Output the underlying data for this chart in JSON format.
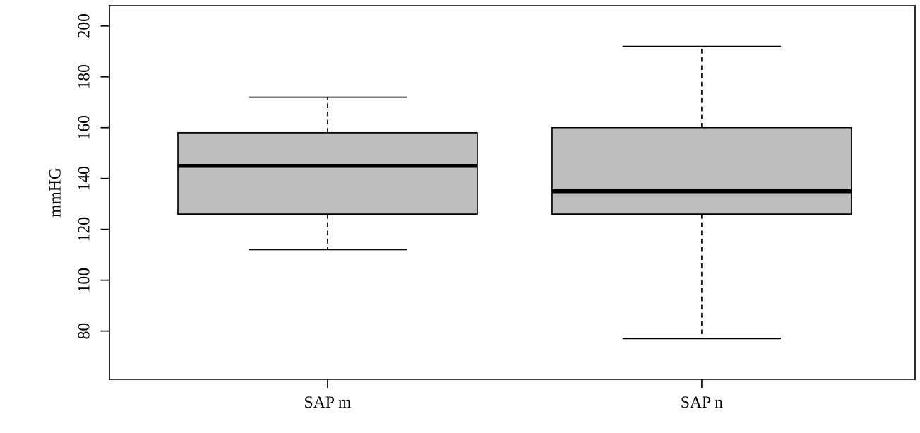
{
  "chart_data": {
    "type": "box",
    "ylabel": "mmHG",
    "categories": [
      "SAP m",
      "SAP n"
    ],
    "boxes": [
      {
        "low": 112,
        "q1": 126,
        "median": 145,
        "q3": 158,
        "high": 172
      },
      {
        "low": 77,
        "q1": 126,
        "median": 135,
        "q3": 160,
        "high": 192
      }
    ],
    "color": "#bebebe",
    "ylim": [
      61,
      208
    ],
    "yticks": [
      80,
      100,
      120,
      140,
      160,
      180,
      200
    ],
    "grid": false,
    "legend": false
  }
}
